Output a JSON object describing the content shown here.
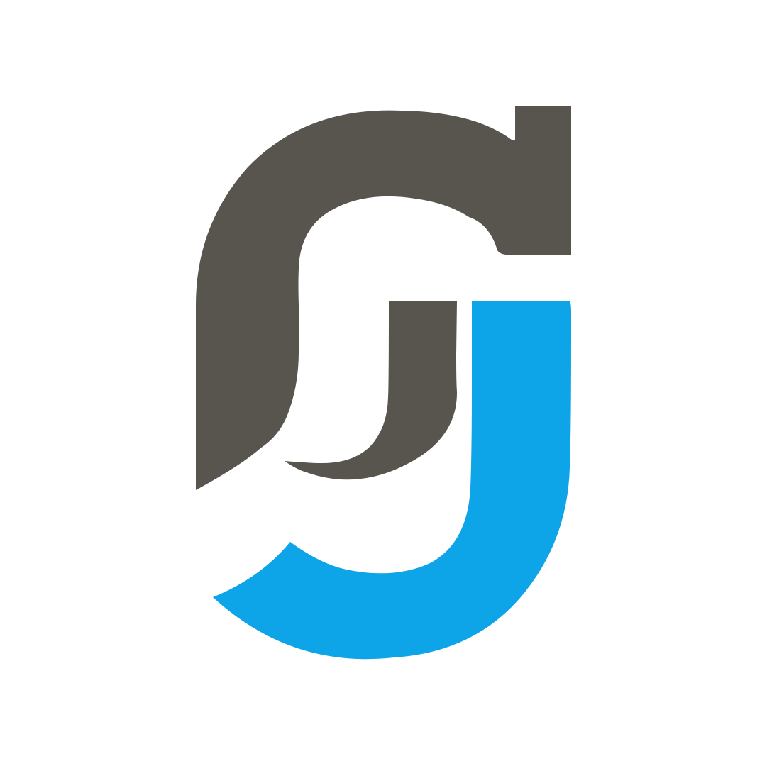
{
  "logo": {
    "name": "gj-monogram-logo",
    "colors": {
      "background": "#ffffff",
      "dark": "#58554f",
      "blue": "#0ea5e8"
    }
  }
}
